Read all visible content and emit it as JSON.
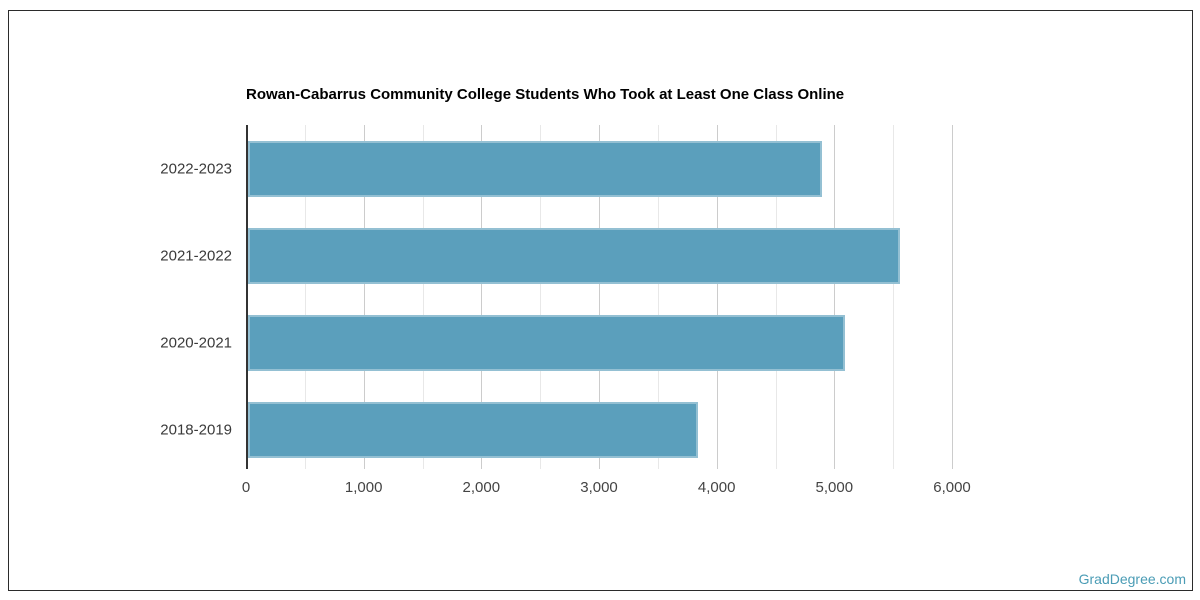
{
  "chart_data": {
    "type": "bar",
    "orientation": "horizontal",
    "title": "Rowan-Cabarrus Community College Students Who Took at Least One Class Online",
    "categories": [
      "2022-2023",
      "2021-2022",
      "2020-2021",
      "2018-2019"
    ],
    "values": [
      4880,
      5540,
      5075,
      3820
    ],
    "xlabel": "",
    "ylabel": "",
    "xlim": [
      0,
      6000
    ],
    "x_tick_step": 1000,
    "x_gridline_step": 500,
    "x_tick_labels": [
      "0",
      "1,000",
      "2,000",
      "3,000",
      "4,000",
      "5,000",
      "6,000"
    ],
    "grid": true,
    "legend": "none",
    "bar_color": "#5b9fbc",
    "major_gridline_color": "#cccccc",
    "minor_gridline_color": "#e8e8e8",
    "axis_color": "#333333",
    "label_color": "#444444"
  },
  "watermark": {
    "label": "GradDegree.com",
    "color": "#4a9cb5"
  }
}
